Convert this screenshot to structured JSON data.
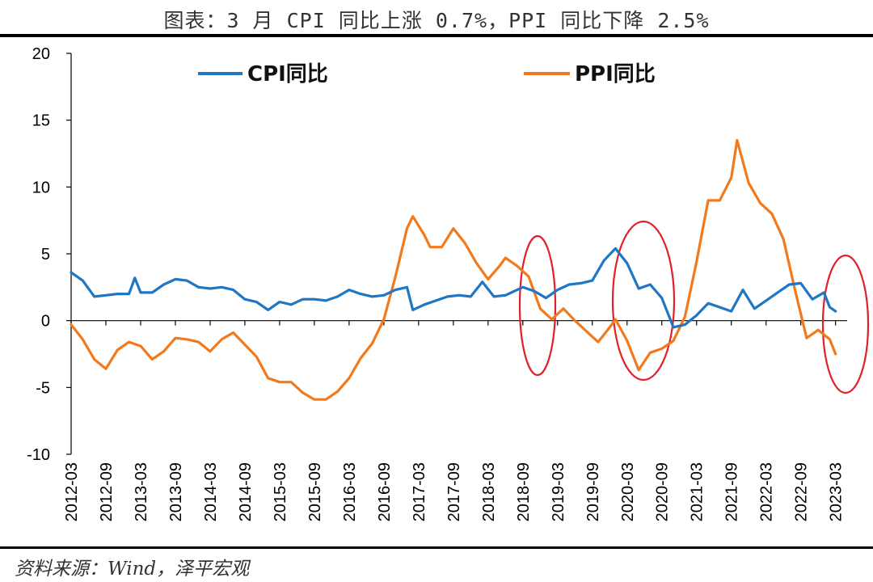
{
  "title": "图表：3 月 CPI 同比上涨 0.7%，PPI 同比下降 2.5%",
  "source": "资料来源：Wind，泽平宏观",
  "colors": {
    "cpi": "#1f77c4",
    "ppi": "#f27a1c",
    "annotation": "#e0202a",
    "axis": "#000000"
  },
  "chart_data": {
    "type": "line",
    "ylim": [
      -10,
      20
    ],
    "yticks": [
      -10,
      -5,
      0,
      5,
      10,
      15,
      20
    ],
    "x_tick_labels": [
      "2012-03",
      "2012-09",
      "2013-03",
      "2013-09",
      "2014-03",
      "2014-09",
      "2015-03",
      "2015-09",
      "2016-03",
      "2016-09",
      "2017-03",
      "2017-09",
      "2018-03",
      "2018-09",
      "2019-03",
      "2019-09",
      "2020-03",
      "2020-09",
      "2021-03",
      "2021-09",
      "2022-03",
      "2022-09",
      "2023-03"
    ],
    "legend_position": "top",
    "annotations": [
      "ellipse around 2018-09 to 2019-03",
      "ellipse around 2020-03 to 2020-09",
      "ellipse around 2023-03"
    ],
    "series": [
      {
        "name": "CPI同比",
        "color": "#1f77c4",
        "points": [
          [
            "2012-03",
            3.6
          ],
          [
            "2012-05",
            3.0
          ],
          [
            "2012-07",
            1.8
          ],
          [
            "2012-09",
            1.9
          ],
          [
            "2012-11",
            2.0
          ],
          [
            "2013-01",
            2.0
          ],
          [
            "2013-02",
            3.2
          ],
          [
            "2013-03",
            2.1
          ],
          [
            "2013-05",
            2.1
          ],
          [
            "2013-07",
            2.7
          ],
          [
            "2013-09",
            3.1
          ],
          [
            "2013-11",
            3.0
          ],
          [
            "2014-01",
            2.5
          ],
          [
            "2014-03",
            2.4
          ],
          [
            "2014-05",
            2.5
          ],
          [
            "2014-07",
            2.3
          ],
          [
            "2014-09",
            1.6
          ],
          [
            "2014-11",
            1.4
          ],
          [
            "2015-01",
            0.8
          ],
          [
            "2015-03",
            1.4
          ],
          [
            "2015-05",
            1.2
          ],
          [
            "2015-07",
            1.6
          ],
          [
            "2015-09",
            1.6
          ],
          [
            "2015-11",
            1.5
          ],
          [
            "2016-01",
            1.8
          ],
          [
            "2016-03",
            2.3
          ],
          [
            "2016-05",
            2.0
          ],
          [
            "2016-07",
            1.8
          ],
          [
            "2016-09",
            1.9
          ],
          [
            "2016-11",
            2.3
          ],
          [
            "2017-01",
            2.5
          ],
          [
            "2017-02",
            0.8
          ],
          [
            "2017-04",
            1.2
          ],
          [
            "2017-06",
            1.5
          ],
          [
            "2017-08",
            1.8
          ],
          [
            "2017-10",
            1.9
          ],
          [
            "2017-12",
            1.8
          ],
          [
            "2018-02",
            2.9
          ],
          [
            "2018-04",
            1.8
          ],
          [
            "2018-06",
            1.9
          ],
          [
            "2018-09",
            2.5
          ],
          [
            "2018-11",
            2.2
          ],
          [
            "2019-01",
            1.7
          ],
          [
            "2019-03",
            2.3
          ],
          [
            "2019-05",
            2.7
          ],
          [
            "2019-07",
            2.8
          ],
          [
            "2019-09",
            3.0
          ],
          [
            "2019-11",
            4.5
          ],
          [
            "2020-01",
            5.4
          ],
          [
            "2020-03",
            4.3
          ],
          [
            "2020-05",
            2.4
          ],
          [
            "2020-07",
            2.7
          ],
          [
            "2020-09",
            1.7
          ],
          [
            "2020-11",
            -0.5
          ],
          [
            "2021-01",
            -0.3
          ],
          [
            "2021-03",
            0.4
          ],
          [
            "2021-05",
            1.3
          ],
          [
            "2021-07",
            1.0
          ],
          [
            "2021-09",
            0.7
          ],
          [
            "2021-11",
            2.3
          ],
          [
            "2022-01",
            0.9
          ],
          [
            "2022-03",
            1.5
          ],
          [
            "2022-05",
            2.1
          ],
          [
            "2022-07",
            2.7
          ],
          [
            "2022-09",
            2.8
          ],
          [
            "2022-11",
            1.6
          ],
          [
            "2023-01",
            2.1
          ],
          [
            "2023-02",
            1.0
          ],
          [
            "2023-03",
            0.7
          ]
        ]
      },
      {
        "name": "PPI同比",
        "color": "#f27a1c",
        "points": [
          [
            "2012-03",
            -0.3
          ],
          [
            "2012-05",
            -1.4
          ],
          [
            "2012-07",
            -2.9
          ],
          [
            "2012-09",
            -3.6
          ],
          [
            "2012-11",
            -2.2
          ],
          [
            "2013-01",
            -1.6
          ],
          [
            "2013-03",
            -1.9
          ],
          [
            "2013-05",
            -2.9
          ],
          [
            "2013-07",
            -2.3
          ],
          [
            "2013-09",
            -1.3
          ],
          [
            "2013-11",
            -1.4
          ],
          [
            "2014-01",
            -1.6
          ],
          [
            "2014-03",
            -2.3
          ],
          [
            "2014-05",
            -1.4
          ],
          [
            "2014-07",
            -0.9
          ],
          [
            "2014-09",
            -1.8
          ],
          [
            "2014-11",
            -2.7
          ],
          [
            "2015-01",
            -4.3
          ],
          [
            "2015-03",
            -4.6
          ],
          [
            "2015-05",
            -4.6
          ],
          [
            "2015-07",
            -5.4
          ],
          [
            "2015-09",
            -5.9
          ],
          [
            "2015-11",
            -5.9
          ],
          [
            "2016-01",
            -5.3
          ],
          [
            "2016-03",
            -4.3
          ],
          [
            "2016-05",
            -2.8
          ],
          [
            "2016-07",
            -1.7
          ],
          [
            "2016-09",
            0.1
          ],
          [
            "2016-11",
            3.3
          ],
          [
            "2017-01",
            6.9
          ],
          [
            "2017-02",
            7.8
          ],
          [
            "2017-04",
            6.4
          ],
          [
            "2017-05",
            5.5
          ],
          [
            "2017-07",
            5.5
          ],
          [
            "2017-09",
            6.9
          ],
          [
            "2017-11",
            5.8
          ],
          [
            "2018-01",
            4.3
          ],
          [
            "2018-03",
            3.1
          ],
          [
            "2018-05",
            4.1
          ],
          [
            "2018-06",
            4.7
          ],
          [
            "2018-08",
            4.1
          ],
          [
            "2018-10",
            3.3
          ],
          [
            "2018-12",
            0.9
          ],
          [
            "2019-02",
            0.1
          ],
          [
            "2019-04",
            0.9
          ],
          [
            "2019-06",
            0.0
          ],
          [
            "2019-08",
            -0.8
          ],
          [
            "2019-10",
            -1.6
          ],
          [
            "2019-12",
            -0.5
          ],
          [
            "2020-01",
            0.1
          ],
          [
            "2020-03",
            -1.5
          ],
          [
            "2020-05",
            -3.7
          ],
          [
            "2020-07",
            -2.4
          ],
          [
            "2020-09",
            -2.1
          ],
          [
            "2020-11",
            -1.5
          ],
          [
            "2021-01",
            0.3
          ],
          [
            "2021-03",
            4.4
          ],
          [
            "2021-05",
            9.0
          ],
          [
            "2021-07",
            9.0
          ],
          [
            "2021-09",
            10.7
          ],
          [
            "2021-10",
            13.5
          ],
          [
            "2021-12",
            10.3
          ],
          [
            "2022-02",
            8.8
          ],
          [
            "2022-04",
            8.0
          ],
          [
            "2022-06",
            6.1
          ],
          [
            "2022-08",
            2.3
          ],
          [
            "2022-10",
            -1.3
          ],
          [
            "2022-12",
            -0.7
          ],
          [
            "2023-02",
            -1.4
          ],
          [
            "2023-03",
            -2.5
          ]
        ]
      }
    ]
  }
}
